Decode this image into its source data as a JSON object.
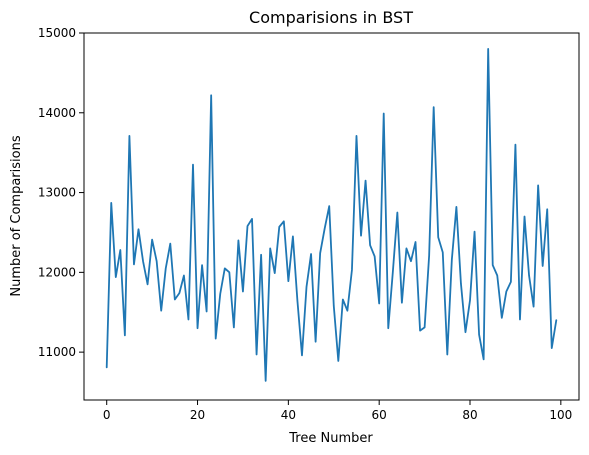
{
  "chart_data": {
    "type": "line",
    "title": "Comparisions in BST",
    "xlabel": "Tree Number",
    "ylabel": "Number of Comparisions",
    "xlim": [
      -5,
      104
    ],
    "ylim": [
      10400,
      15000
    ],
    "xticks": [
      0,
      20,
      40,
      60,
      80,
      100
    ],
    "yticks": [
      11000,
      12000,
      13000,
      14000,
      15000
    ],
    "grid": false,
    "line_color": "#1f77b4",
    "series": [
      {
        "x": [
          0,
          1,
          2,
          3,
          4,
          5,
          6,
          7,
          8,
          9,
          10,
          11,
          12,
          13,
          14,
          15,
          16,
          17,
          18,
          19,
          20,
          21,
          22,
          23,
          24,
          25,
          26,
          27,
          28,
          29,
          30,
          31,
          32,
          33,
          34,
          35,
          36,
          37,
          38,
          39,
          40,
          41,
          42,
          43,
          44,
          45,
          46,
          47,
          48,
          49,
          50,
          51,
          52,
          53,
          54,
          55,
          56,
          57,
          58,
          59,
          60,
          61,
          62,
          63,
          64,
          65,
          66,
          67,
          68,
          69,
          70,
          71,
          72,
          73,
          74,
          75,
          76,
          77,
          78,
          79,
          80,
          81,
          82,
          83,
          84,
          85,
          86,
          87,
          88,
          89,
          90,
          91,
          92,
          93,
          94,
          95,
          96,
          97,
          98,
          99
        ],
        "values": [
          10810,
          12870,
          11940,
          12280,
          11210,
          13710,
          12100,
          12540,
          12140,
          11850,
          12410,
          12140,
          11520,
          12050,
          12360,
          11660,
          11740,
          11960,
          11410,
          13350,
          11300,
          12090,
          11510,
          14220,
          11170,
          11730,
          12050,
          12000,
          11310,
          12400,
          11760,
          12580,
          12670,
          10970,
          12220,
          10640,
          12300,
          11990,
          12570,
          12640,
          11890,
          12450,
          11640,
          10960,
          11820,
          12230,
          11130,
          12240,
          12550,
          12830,
          11580,
          10890,
          11660,
          11520,
          12030,
          13710,
          12460,
          13150,
          12340,
          12200,
          11610,
          13990,
          11300,
          12000,
          12750,
          11620,
          12300,
          12140,
          12380,
          11270,
          11310,
          12210,
          14070,
          12440,
          12250,
          10970,
          12160,
          12820,
          11860,
          11250,
          11650,
          12510,
          11220,
          10910,
          14800,
          12090,
          11960,
          11430,
          11760,
          11880,
          13600,
          11410,
          12700,
          11960,
          11570,
          13090,
          12080,
          12790,
          11050,
          11400
        ]
      }
    ]
  }
}
